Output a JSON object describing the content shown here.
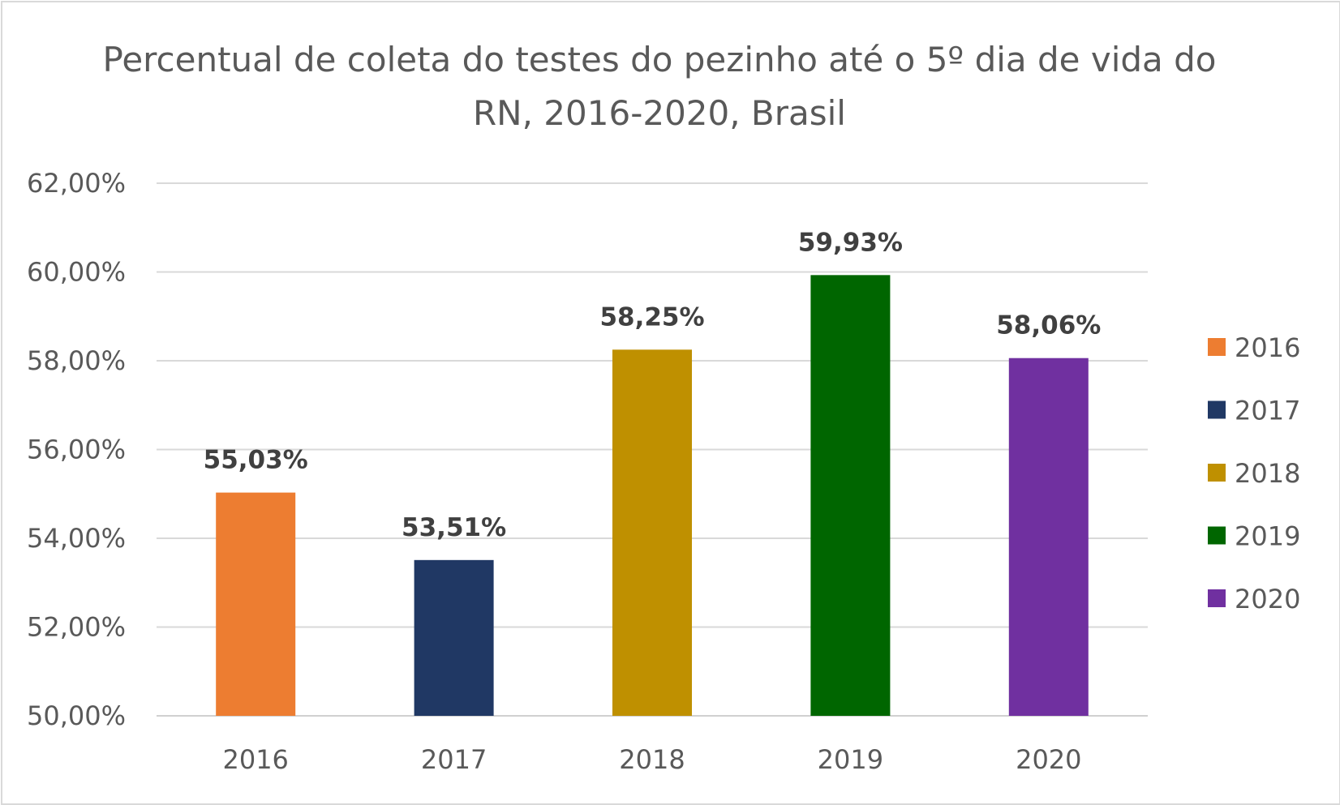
{
  "chart_data": {
    "type": "bar",
    "title": "Percentual de coleta do testes do pezinho até o 5º dia de vida do RN, 2016-2020, Brasil",
    "categories": [
      "2016",
      "2017",
      "2018",
      "2019",
      "2020"
    ],
    "values": [
      55.03,
      53.51,
      58.25,
      59.93,
      58.06
    ],
    "value_labels": [
      "55,03%",
      "53,51%",
      "58,25%",
      "59,93%",
      "58,06%"
    ],
    "colors": [
      "#ED7D31",
      "#203864",
      "#BF9000",
      "#006600",
      "#7030A0"
    ],
    "ylim": [
      50,
      62
    ],
    "yticks": [
      50,
      52,
      54,
      56,
      58,
      60,
      62
    ],
    "ytick_labels": [
      "50,00%",
      "52,00%",
      "54,00%",
      "56,00%",
      "58,00%",
      "60,00%",
      "62,00%"
    ],
    "xlabel": "",
    "ylabel": "",
    "grid": true,
    "legend": {
      "position": "right",
      "entries": [
        "2016",
        "2017",
        "2018",
        "2019",
        "2020"
      ]
    }
  }
}
